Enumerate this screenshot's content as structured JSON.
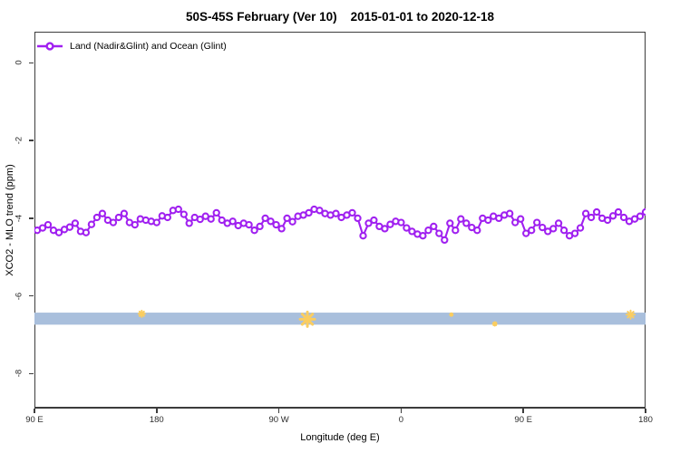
{
  "title": "50S-45S February (Ver 10)    2015-01-01 to 2020-12-18",
  "legend": {
    "label": "Land (Nadir&Glint) and Ocean (Glint)"
  },
  "colors": {
    "series": "#A020F0",
    "marker_fill": "#ffffff",
    "band": "#A9BFDC",
    "flag": "#FACD60",
    "axis": "#3c3c3c",
    "text": "#000000"
  },
  "chart_data": {
    "type": "line",
    "title": "50S-45S February (Ver 10)  2015-01-01 to 2020-12-18",
    "xlabel": "Longitude (deg E)",
    "ylabel": "XCO2 - MLO trend (ppm)",
    "xlim": [
      90,
      540
    ],
    "ylim": [
      -8.9,
      0.8
    ],
    "grid": false,
    "legend_position": "top-left",
    "marker": "open-circle",
    "xticks": [
      {
        "pos": 90,
        "label": "90 E"
      },
      {
        "pos": 180,
        "label": "180"
      },
      {
        "pos": 270,
        "label": "90 W"
      },
      {
        "pos": 360,
        "label": "0"
      },
      {
        "pos": 450,
        "label": "90 E"
      },
      {
        "pos": 540,
        "label": "180"
      }
    ],
    "yticks": [
      {
        "pos": 0,
        "label": "0"
      },
      {
        "pos": -2,
        "label": "-2"
      },
      {
        "pos": -4,
        "label": "-4"
      },
      {
        "pos": -6,
        "label": "-6"
      },
      {
        "pos": -8,
        "label": "-8"
      }
    ],
    "band": {
      "from": -6.74,
      "to": -6.43,
      "color": "#A9BFDC"
    },
    "flags": [
      {
        "x": 169,
        "y": -6.46,
        "size": 7
      },
      {
        "x": 291,
        "y": -6.6,
        "size": 16
      },
      {
        "x": 397,
        "y": -6.48,
        "size": 3
      },
      {
        "x": 429,
        "y": -6.72,
        "size": 4
      },
      {
        "x": 529,
        "y": -6.48,
        "size": 9
      }
    ],
    "x_start": 92,
    "x_step": 4,
    "series": [
      {
        "name": "Land (Nadir&Glint) and Ocean (Glint)",
        "color": "#A020F0",
        "values": [
          -4.31,
          -4.25,
          -4.17,
          -4.31,
          -4.37,
          -4.29,
          -4.23,
          -4.13,
          -4.34,
          -4.37,
          -4.16,
          -3.98,
          -3.88,
          -4.05,
          -4.11,
          -3.98,
          -3.88,
          -4.11,
          -4.17,
          -4.02,
          -4.05,
          -4.08,
          -4.11,
          -3.94,
          -3.98,
          -3.8,
          -3.77,
          -3.9,
          -4.13,
          -3.98,
          -4.03,
          -3.95,
          -4.02,
          -3.86,
          -4.05,
          -4.13,
          -4.08,
          -4.19,
          -4.13,
          -4.17,
          -4.31,
          -4.21,
          -4.0,
          -4.08,
          -4.17,
          -4.27,
          -4.0,
          -4.09,
          -3.95,
          -3.92,
          -3.86,
          -3.77,
          -3.8,
          -3.88,
          -3.92,
          -3.88,
          -3.98,
          -3.92,
          -3.86,
          -4.0,
          -4.45,
          -4.13,
          -4.05,
          -4.21,
          -4.27,
          -4.16,
          -4.08,
          -4.11,
          -4.25,
          -4.34,
          -4.41,
          -4.45,
          -4.31,
          -4.21,
          -4.39,
          -4.56,
          -4.13,
          -4.31,
          -4.02,
          -4.13,
          -4.24,
          -4.31,
          -4.0,
          -4.05,
          -3.95,
          -4.0,
          -3.92,
          -3.88,
          -4.11,
          -4.02,
          -4.39,
          -4.31,
          -4.11,
          -4.24,
          -4.34,
          -4.27,
          -4.13,
          -4.31,
          -4.45,
          -4.39,
          -4.25,
          -3.88,
          -3.98,
          -3.84,
          -4.0,
          -4.05,
          -3.94,
          -3.84,
          -3.98,
          -4.08,
          -4.02,
          -3.95,
          -3.84
        ]
      }
    ]
  }
}
